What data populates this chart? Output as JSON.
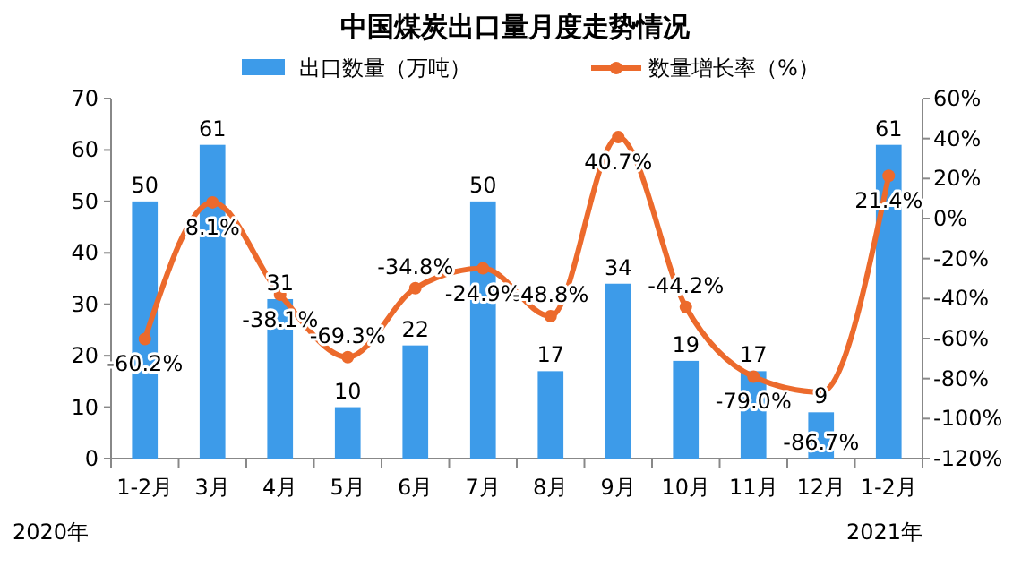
{
  "chart_data": {
    "type": "bar",
    "title": "中国煤炭出口量月度走势情况",
    "categories": [
      "1-2月",
      "3月",
      "4月",
      "5月",
      "6月",
      "7月",
      "8月",
      "9月",
      "10月",
      "11月",
      "12月",
      "1-2月"
    ],
    "series": [
      {
        "name": "出口数量（万吨）",
        "color": "#3d9be9",
        "values": [
          50,
          61,
          31,
          10,
          22,
          50,
          17,
          34,
          19,
          17,
          9,
          61
        ],
        "data_labels": true
      },
      {
        "name": "数量增长率（%）",
        "type": "line",
        "axis": "y2",
        "color": "#ec6a2c",
        "marker": "circle",
        "values": [
          -60.2,
          8.1,
          -38.1,
          -69.3,
          -34.8,
          -24.9,
          -48.8,
          40.7,
          -44.2,
          -79.0,
          -86.7,
          21.4
        ],
        "value_labels": [
          "-60.2%",
          "8.1%",
          "-38.1%",
          "-69.3%",
          "-34.8%",
          "-24.9%",
          "-48.8%",
          "40.7%",
          "-44.2%",
          "-79.0%",
          "-86.7%",
          "21.4%"
        ]
      }
    ],
    "ylim": [
      0,
      70
    ],
    "yticks": [
      0,
      10,
      20,
      30,
      40,
      50,
      60,
      70
    ],
    "y2lim": [
      -120,
      60
    ],
    "y2ticks": [
      {
        "value": -120,
        "label": "-120%"
      },
      {
        "value": -100,
        "label": "-100%"
      },
      {
        "value": -80,
        "label": "-80%"
      },
      {
        "value": -60,
        "label": "-60%"
      },
      {
        "value": -40,
        "label": "-40%"
      },
      {
        "value": -20,
        "label": "-20%"
      },
      {
        "value": 0,
        "label": "0%"
      },
      {
        "value": 20,
        "label": "20%"
      },
      {
        "value": 40,
        "label": "40%"
      },
      {
        "value": 60,
        "label": "60%"
      }
    ],
    "legend": "top",
    "grid": false,
    "annotations": [
      "2020年",
      "2021年"
    ]
  }
}
